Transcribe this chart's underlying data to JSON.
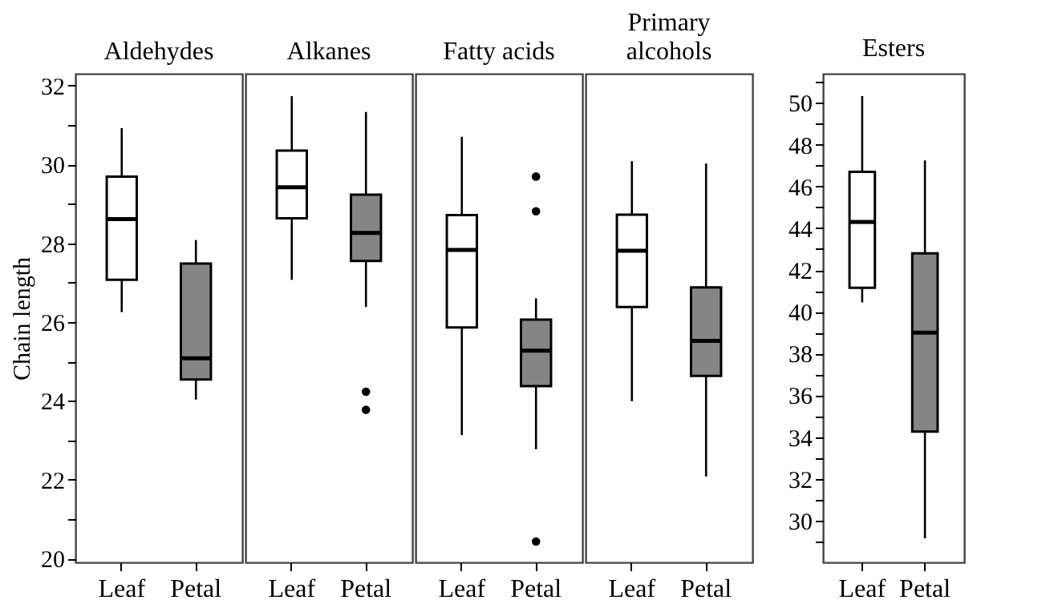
{
  "chart_data": [
    {
      "type": "box",
      "title": "Aldehydes",
      "ylabel": "Chain length",
      "categories": [
        "Leaf",
        "Petal"
      ],
      "colors": [
        "#ffffff",
        "#858585"
      ],
      "ylim": [
        19.9,
        32.3
      ],
      "yticks": [
        20,
        {
          "value": 21,
          "label": null
        },
        22,
        {
          "value": 23,
          "label": null
        },
        24,
        {
          "value": 25,
          "label": null
        },
        26,
        {
          "value": 27,
          "label": null
        },
        28,
        {
          "value": 29,
          "label": null
        },
        30,
        {
          "value": 31,
          "label": null
        },
        32
      ],
      "grid": false,
      "boxes": [
        {
          "low": 26.25,
          "q1": 27.07,
          "median": 28.61,
          "q3": 29.69,
          "high": 30.92
        },
        {
          "low": 24.03,
          "q1": 24.54,
          "median": 25.08,
          "q3": 27.48,
          "high": 28.08
        }
      ]
    },
    {
      "type": "box",
      "title": "Alkanes",
      "categories": [
        "Leaf",
        "Petal"
      ],
      "colors": [
        "#ffffff",
        "#858585"
      ],
      "ylim": [
        19.9,
        32.3
      ],
      "yticks": [
        20,
        22,
        24,
        26,
        28,
        30,
        32
      ],
      "tick_labels": "x",
      "grid": false,
      "boxes": [
        {
          "low": 27.07,
          "q1": 28.63,
          "median": 29.42,
          "q3": 30.35,
          "high": 31.73
        },
        {
          "low": 26.38,
          "q1": 27.55,
          "median": 28.26,
          "q3": 29.23,
          "high": 31.33,
          "outliers": [
            24.23,
            23.77
          ]
        }
      ]
    },
    {
      "type": "box",
      "title": "Fatty acids",
      "categories": [
        "Leaf",
        "Petal"
      ],
      "colors": [
        "#ffffff",
        "#858585"
      ],
      "ylim": [
        19.9,
        32.3
      ],
      "yticks": [
        20,
        22,
        24,
        26,
        28,
        30,
        32
      ],
      "tick_labels": "x",
      "grid": false,
      "boxes": [
        {
          "low": 23.13,
          "q1": 25.86,
          "median": 27.83,
          "q3": 28.71,
          "high": 30.7
        },
        {
          "low": 22.77,
          "q1": 24.37,
          "median": 25.27,
          "q3": 26.06,
          "high": 26.6,
          "outliers": [
            29.69,
            28.81,
            20.43
          ]
        }
      ]
    },
    {
      "type": "box",
      "title": "Primary alcohols",
      "categories": [
        "Leaf",
        "Petal"
      ],
      "colors": [
        "#ffffff",
        "#858585"
      ],
      "ylim": [
        19.9,
        32.3
      ],
      "yticks": [
        20,
        22,
        24,
        26,
        28,
        30,
        32
      ],
      "tick_labels": "x",
      "grid": false,
      "boxes": [
        {
          "low": 23.99,
          "q1": 26.38,
          "median": 27.81,
          "q3": 28.72,
          "high": 30.08
        },
        {
          "low": 22.08,
          "q1": 24.63,
          "median": 25.52,
          "q3": 26.88,
          "high": 30.02
        }
      ]
    },
    {
      "type": "box",
      "title": "Esters",
      "categories": [
        "Leaf",
        "Petal"
      ],
      "colors": [
        "#ffffff",
        "#858585"
      ],
      "ylim": [
        28.0,
        51.4
      ],
      "yticks": [
        {
          "value": 29,
          "label": null
        },
        30,
        {
          "value": 31,
          "label": null
        },
        32,
        {
          "value": 33,
          "label": null
        },
        34,
        {
          "value": 35,
          "label": null
        },
        36,
        {
          "value": 37,
          "label": null
        },
        38,
        {
          "value": 39,
          "label": null
        },
        40,
        {
          "value": 41,
          "label": null
        },
        42,
        {
          "value": 43,
          "label": null
        },
        44,
        {
          "value": 45,
          "label": null
        },
        46,
        {
          "value": 47,
          "label": null
        },
        48,
        {
          "value": 49,
          "label": null
        },
        50,
        {
          "value": 51,
          "label": null
        }
      ],
      "grid": false,
      "boxes": [
        {
          "low": 40.45,
          "q1": 41.15,
          "median": 44.3,
          "q3": 46.7,
          "high": 50.33
        },
        {
          "low": 29.15,
          "q1": 34.26,
          "median": 39.0,
          "q3": 42.8,
          "high": 47.25
        }
      ]
    }
  ]
}
